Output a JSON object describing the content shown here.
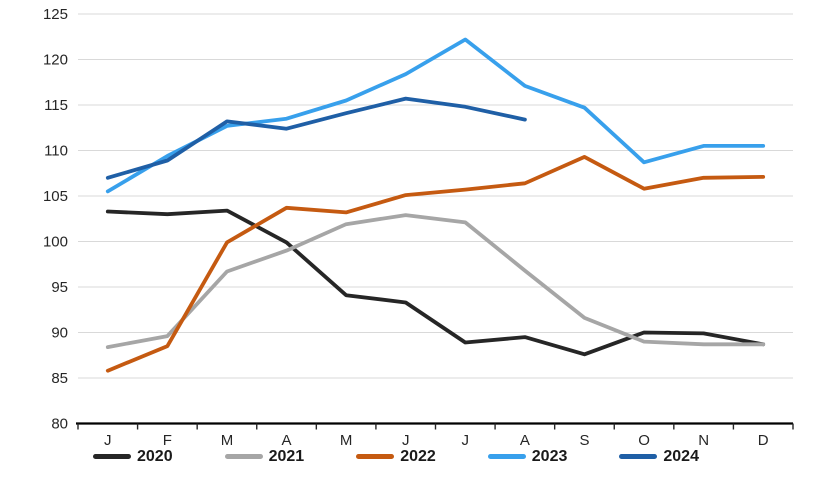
{
  "chart_data": {
    "type": "line",
    "title": "",
    "xlabel": "",
    "ylabel": "",
    "ylim": [
      80,
      125
    ],
    "ytick_step": 5,
    "grid": true,
    "legend_position": "bottom",
    "categories": [
      "J",
      "F",
      "M",
      "A",
      "M",
      "J",
      "J",
      "A",
      "S",
      "O",
      "N",
      "D"
    ],
    "y_tick_labels": [
      "125",
      "120",
      "115",
      "110",
      "105",
      "100",
      "95",
      "90",
      "85",
      "80"
    ],
    "series": [
      {
        "name": "2020",
        "color": "#262626",
        "values": [
          103.3,
          103.0,
          103.4,
          99.9,
          94.1,
          93.3,
          88.9,
          89.5,
          87.6,
          90.0,
          89.9,
          88.7
        ]
      },
      {
        "name": "2021",
        "color": "#A6A6A6",
        "values": [
          88.4,
          89.6,
          96.7,
          99.0,
          101.9,
          102.9,
          102.1,
          96.8,
          91.6,
          89.0,
          88.7,
          88.7
        ]
      },
      {
        "name": "2022",
        "color": "#C55A11",
        "values": [
          85.8,
          88.5,
          99.9,
          103.7,
          103.2,
          105.1,
          105.7,
          106.4,
          109.3,
          105.8,
          107.0,
          107.1
        ]
      },
      {
        "name": "2023",
        "color": "#38A0EC",
        "values": [
          105.5,
          109.4,
          112.7,
          113.5,
          115.5,
          118.4,
          122.2,
          117.1,
          114.7,
          108.7,
          110.5,
          110.5
        ]
      },
      {
        "name": "2024",
        "color": "#1F5FA6",
        "values": [
          107.0,
          108.9,
          113.2,
          112.4,
          114.1,
          115.7,
          114.8,
          113.4,
          null,
          null,
          null,
          null
        ]
      }
    ]
  },
  "colors": {
    "gridline": "#D9D9D9",
    "axis": "#000000",
    "tick": "#262626",
    "label_text": "#262626",
    "background": "#FFFFFF"
  }
}
